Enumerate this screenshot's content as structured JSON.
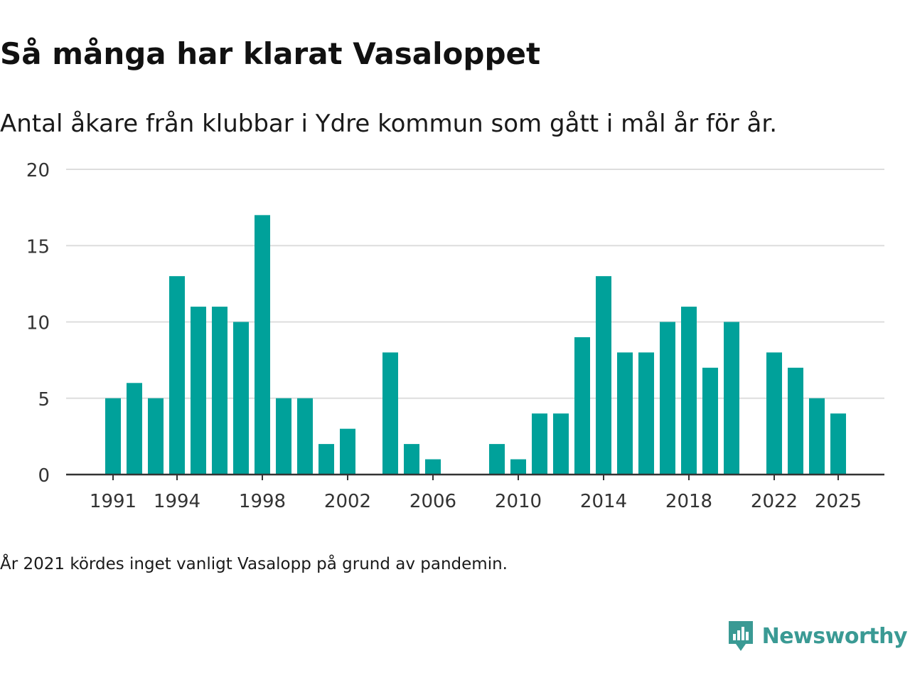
{
  "title": "Så många har klarat Vasaloppet",
  "subtitle": "Antal åkare från klubbar i Ydre kommun som gått i mål år för år.",
  "note": "År 2021 kördes inget vanligt Vasalopp på grund av pandemin.",
  "brand": {
    "name": "Newsworthy",
    "icon": "newsworthy-logo-icon",
    "color": "#3a9a94"
  },
  "colors": {
    "bar": "#00A19A",
    "grid": "#dddddd",
    "axis": "#333333",
    "text": "#333333"
  },
  "chart_data": {
    "type": "bar",
    "x": [
      1991,
      1992,
      1993,
      1994,
      1995,
      1996,
      1997,
      1998,
      1999,
      2000,
      2001,
      2002,
      2003,
      2004,
      2005,
      2006,
      2007,
      2008,
      2009,
      2010,
      2011,
      2012,
      2013,
      2014,
      2015,
      2016,
      2017,
      2018,
      2019,
      2020,
      2021,
      2022,
      2023,
      2024,
      2025
    ],
    "values": [
      5,
      6,
      5,
      13,
      11,
      11,
      10,
      17,
      5,
      5,
      2,
      3,
      0,
      8,
      2,
      1,
      0,
      0,
      2,
      1,
      4,
      4,
      9,
      13,
      8,
      8,
      10,
      11,
      7,
      10,
      null,
      8,
      7,
      5,
      4
    ],
    "xticks": [
      1991,
      1994,
      1998,
      2002,
      2006,
      2010,
      2014,
      2018,
      2022,
      2025
    ],
    "yticks": [
      0,
      5,
      10,
      15,
      20
    ],
    "ylim": [
      0,
      20
    ],
    "grid": true
  }
}
